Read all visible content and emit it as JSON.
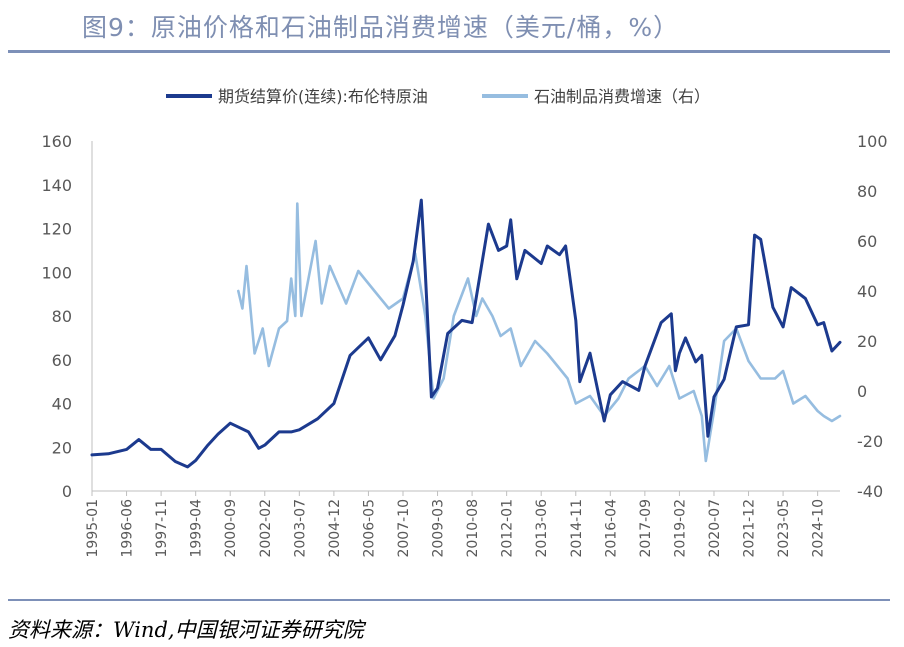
{
  "title": "图9：原油价格和石油制品消费增速（美元/桶，%）",
  "source": "资料来源：Wind,中国银河证券研究院",
  "colors": {
    "title": "#7f8fb2",
    "rule": "#7d90b8",
    "brent": "#1c3a8e",
    "consumption": "#96bde0",
    "axis": "#bfbfbf",
    "tick_text": "#595959"
  },
  "chart_data": {
    "type": "line",
    "legend_position": "top",
    "grid": false,
    "x_tick_labels": [
      "1995-01",
      "1996-06",
      "1997-11",
      "1999-04",
      "2000-09",
      "2002-02",
      "2003-07",
      "2004-12",
      "2006-05",
      "2007-10",
      "2009-03",
      "2010-08",
      "2012-01",
      "2013-06",
      "2014-11",
      "2016-04",
      "2017-09",
      "2019-02",
      "2020-07",
      "2021-12",
      "2023-05",
      "2024-10"
    ],
    "x_range": [
      "1995-01",
      "2025-09"
    ],
    "y_left": {
      "min": 0,
      "max": 160,
      "ticks": [
        0,
        20,
        40,
        60,
        80,
        100,
        120,
        140,
        160
      ]
    },
    "y_right": {
      "min": -40,
      "max": 100,
      "ticks": [
        -40,
        -20,
        0,
        20,
        40,
        60,
        80,
        100
      ]
    },
    "series": [
      {
        "name": "期货结算价(连续):布伦特原油",
        "axis": "left",
        "color": "#1c3a8e",
        "points": [
          [
            "1995-01",
            16.5
          ],
          [
            "1995-09",
            17
          ],
          [
            "1996-06",
            19
          ],
          [
            "1996-12",
            23.5
          ],
          [
            "1997-06",
            19
          ],
          [
            "1997-11",
            19
          ],
          [
            "1998-06",
            13.5
          ],
          [
            "1998-12",
            11
          ],
          [
            "1999-04",
            14
          ],
          [
            "1999-10",
            21
          ],
          [
            "2000-03",
            26
          ],
          [
            "2000-09",
            31
          ],
          [
            "2001-06",
            27
          ],
          [
            "2001-11",
            19.5
          ],
          [
            "2002-02",
            21
          ],
          [
            "2002-09",
            27
          ],
          [
            "2003-03",
            27
          ],
          [
            "2003-07",
            28
          ],
          [
            "2004-04",
            33
          ],
          [
            "2004-12",
            40
          ],
          [
            "2005-08",
            62
          ],
          [
            "2006-05",
            70
          ],
          [
            "2006-11",
            60
          ],
          [
            "2007-06",
            71
          ],
          [
            "2007-10",
            85
          ],
          [
            "2008-03",
            105
          ],
          [
            "2008-07",
            133
          ],
          [
            "2008-09",
            100
          ],
          [
            "2008-12",
            43
          ],
          [
            "2009-03",
            47
          ],
          [
            "2009-08",
            72
          ],
          [
            "2010-03",
            78
          ],
          [
            "2010-08",
            77
          ],
          [
            "2011-04",
            122
          ],
          [
            "2011-09",
            110
          ],
          [
            "2012-01",
            112
          ],
          [
            "2012-03",
            124
          ],
          [
            "2012-06",
            97
          ],
          [
            "2012-10",
            110
          ],
          [
            "2013-06",
            104
          ],
          [
            "2013-09",
            112
          ],
          [
            "2014-03",
            108
          ],
          [
            "2014-06",
            112
          ],
          [
            "2014-11",
            78
          ],
          [
            "2015-01",
            50
          ],
          [
            "2015-06",
            63
          ],
          [
            "2016-01",
            32
          ],
          [
            "2016-04",
            44
          ],
          [
            "2016-10",
            50
          ],
          [
            "2017-06",
            46
          ],
          [
            "2017-09",
            57
          ],
          [
            "2018-05",
            77
          ],
          [
            "2018-10",
            81
          ],
          [
            "2018-12",
            55
          ],
          [
            "2019-02",
            63
          ],
          [
            "2019-05",
            70
          ],
          [
            "2019-10",
            59
          ],
          [
            "2020-01",
            62
          ],
          [
            "2020-04",
            25
          ],
          [
            "2020-07",
            43
          ],
          [
            "2020-12",
            51
          ],
          [
            "2021-06",
            75
          ],
          [
            "2021-12",
            76
          ],
          [
            "2022-03",
            117
          ],
          [
            "2022-06",
            115
          ],
          [
            "2022-12",
            84
          ],
          [
            "2023-05",
            75
          ],
          [
            "2023-09",
            93
          ],
          [
            "2024-04",
            88
          ],
          [
            "2024-10",
            76
          ],
          [
            "2025-01",
            77
          ],
          [
            "2025-05",
            64
          ],
          [
            "2025-09",
            68
          ]
        ]
      },
      {
        "name": "石油制品消费增速（右）",
        "axis": "right",
        "color": "#96bde0",
        "points": [
          [
            "2001-01",
            40
          ],
          [
            "2001-03",
            33
          ],
          [
            "2001-05",
            50
          ],
          [
            "2001-09",
            15
          ],
          [
            "2002-01",
            25
          ],
          [
            "2002-04",
            10
          ],
          [
            "2002-09",
            25
          ],
          [
            "2003-01",
            28
          ],
          [
            "2003-03",
            45
          ],
          [
            "2003-05",
            30
          ],
          [
            "2003-06",
            75
          ],
          [
            "2003-08",
            30
          ],
          [
            "2004-03",
            60
          ],
          [
            "2004-06",
            35
          ],
          [
            "2004-10",
            50
          ],
          [
            "2005-06",
            35
          ],
          [
            "2005-12",
            48
          ],
          [
            "2006-08",
            40
          ],
          [
            "2007-03",
            33
          ],
          [
            "2007-10",
            37
          ],
          [
            "2008-04",
            55
          ],
          [
            "2008-09",
            30
          ],
          [
            "2009-01",
            -3
          ],
          [
            "2009-06",
            5
          ],
          [
            "2009-11",
            30
          ],
          [
            "2010-06",
            45
          ],
          [
            "2010-10",
            30
          ],
          [
            "2011-01",
            37
          ],
          [
            "2011-06",
            30
          ],
          [
            "2011-10",
            22
          ],
          [
            "2012-03",
            25
          ],
          [
            "2012-08",
            10
          ],
          [
            "2013-03",
            20
          ],
          [
            "2013-09",
            15
          ],
          [
            "2014-02",
            10
          ],
          [
            "2014-07",
            5
          ],
          [
            "2014-11",
            -5
          ],
          [
            "2015-06",
            -2
          ],
          [
            "2016-01",
            -10
          ],
          [
            "2016-08",
            -3
          ],
          [
            "2017-01",
            5
          ],
          [
            "2017-09",
            10
          ],
          [
            "2018-03",
            2
          ],
          [
            "2018-09",
            10
          ],
          [
            "2019-02",
            -3
          ],
          [
            "2019-09",
            0
          ],
          [
            "2020-01",
            -10
          ],
          [
            "2020-03",
            -28
          ],
          [
            "2020-07",
            -8
          ],
          [
            "2020-12",
            20
          ],
          [
            "2021-06",
            25
          ],
          [
            "2021-12",
            12
          ],
          [
            "2022-06",
            5
          ],
          [
            "2023-01",
            5
          ],
          [
            "2023-05",
            8
          ],
          [
            "2023-10",
            -5
          ],
          [
            "2024-04",
            -2
          ],
          [
            "2024-10",
            -8
          ],
          [
            "2025-01",
            -10
          ],
          [
            "2025-05",
            -12
          ],
          [
            "2025-09",
            -10
          ]
        ]
      }
    ]
  }
}
